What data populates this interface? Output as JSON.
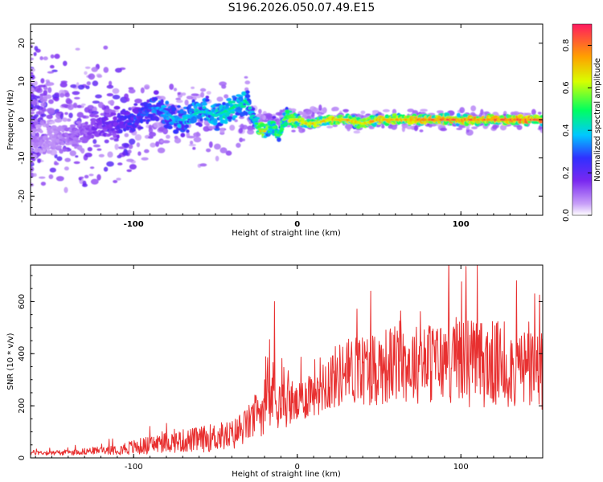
{
  "title": "S196.2026.050.07.49.E15",
  "colors": {
    "snr_line": "#e83030",
    "colorbar": [
      "#ffffff",
      "#c8a0f8",
      "#7a28f0",
      "#3030ff",
      "#00c8ff",
      "#00ff60",
      "#d8ff00",
      "#ffa000",
      "#ff1a60"
    ]
  },
  "chart_data": [
    {
      "type": "heatmap",
      "title": "S196.2026.050.07.49.E15",
      "xlabel": "Height of straight line (km)",
      "ylabel": "Frequency (Hz)",
      "xlim": [
        -163,
        150
      ],
      "ylim": [
        -25,
        25
      ],
      "xticks": [
        "-100",
        "0",
        "100"
      ],
      "yticks": [
        "-20",
        "-10",
        "0",
        "10",
        "20"
      ],
      "colorbar": {
        "label": "Normalized spectral amplitude",
        "range": [
          0,
          0.9
        ],
        "ticks": [
          "0.0",
          "0.2",
          "0.4",
          "0.6",
          "0.8"
        ]
      },
      "ridge_x": [
        -163,
        -150,
        -140,
        -130,
        -120,
        -110,
        -100,
        -95,
        -90,
        -85,
        -80,
        -75,
        -70,
        -65,
        -60,
        -55,
        -50,
        -45,
        -40,
        -35,
        -32,
        -30,
        -28,
        -26,
        -24,
        -22,
        -20,
        -18,
        -16,
        -14,
        -12,
        -10,
        -8,
        -6,
        -4,
        -2,
        0,
        5,
        10,
        20,
        30,
        40,
        50,
        60,
        70,
        80,
        90,
        100,
        110,
        120,
        130,
        140,
        150
      ],
      "ridge_freq": [
        -6,
        -5,
        -4,
        -3,
        -2,
        -1,
        0,
        2,
        3,
        3,
        2,
        0,
        0,
        1,
        2,
        2,
        1,
        2,
        3,
        4,
        5,
        4,
        2,
        0,
        -2,
        -3,
        -3,
        -2,
        -2,
        -2,
        -4,
        -3,
        0,
        1,
        0,
        0,
        0,
        -1,
        -1,
        0,
        0,
        -1,
        0,
        0,
        0,
        0,
        0,
        0,
        0,
        0,
        0,
        0,
        0
      ],
      "ridge_amplitude": [
        0.1,
        0.1,
        0.12,
        0.15,
        0.2,
        0.25,
        0.3,
        0.32,
        0.35,
        0.38,
        0.4,
        0.42,
        0.42,
        0.45,
        0.45,
        0.45,
        0.48,
        0.5,
        0.5,
        0.5,
        0.5,
        0.48,
        0.45,
        0.5,
        0.6,
        0.75,
        0.7,
        0.6,
        0.55,
        0.55,
        0.55,
        0.55,
        0.6,
        0.65,
        0.68,
        0.7,
        0.7,
        0.72,
        0.74,
        0.75,
        0.76,
        0.76,
        0.78,
        0.8,
        0.82,
        0.85,
        0.85,
        0.85,
        0.85,
        0.86,
        0.86,
        0.88,
        0.88
      ]
    },
    {
      "type": "line",
      "xlabel": "Height of straight line (km)",
      "ylabel": "SNR (10 * v/v)",
      "xlim": [
        -163,
        150
      ],
      "ylim": [
        0,
        740
      ],
      "xticks": [
        "-100",
        "0",
        "100"
      ],
      "yticks": [
        "0",
        "200",
        "400",
        "600"
      ],
      "series": [
        {
          "name": "SNR",
          "x": [
            -163,
            -140,
            -120,
            -100,
            -80,
            -60,
            -50,
            -40,
            -30,
            -20,
            -14,
            -10,
            -5,
            0,
            10,
            20,
            30,
            40,
            50,
            60,
            70,
            80,
            90,
            100,
            110,
            120,
            130,
            140,
            150
          ],
          "y": [
            20,
            20,
            30,
            40,
            60,
            70,
            80,
            85,
            130,
            200,
            250,
            200,
            220,
            200,
            270,
            300,
            330,
            340,
            350,
            360,
            360,
            365,
            370,
            380,
            360,
            360,
            350,
            340,
            330
          ],
          "noise_amplitude": [
            10,
            10,
            15,
            30,
            40,
            50,
            55,
            60,
            70,
            110,
            140,
            90,
            100,
            70,
            110,
            120,
            130,
            140,
            150,
            150,
            150,
            160,
            160,
            180,
            170,
            170,
            160,
            160,
            160
          ],
          "spikes": [
            {
              "x": -14,
              "y": 600
            },
            {
              "x": 103,
              "y": 735
            },
            {
              "x": 145,
              "y": 630
            },
            {
              "x": 148,
              "y": 625
            },
            {
              "x": 134,
              "y": 680
            },
            {
              "x": 45,
              "y": 640
            }
          ]
        }
      ]
    }
  ]
}
